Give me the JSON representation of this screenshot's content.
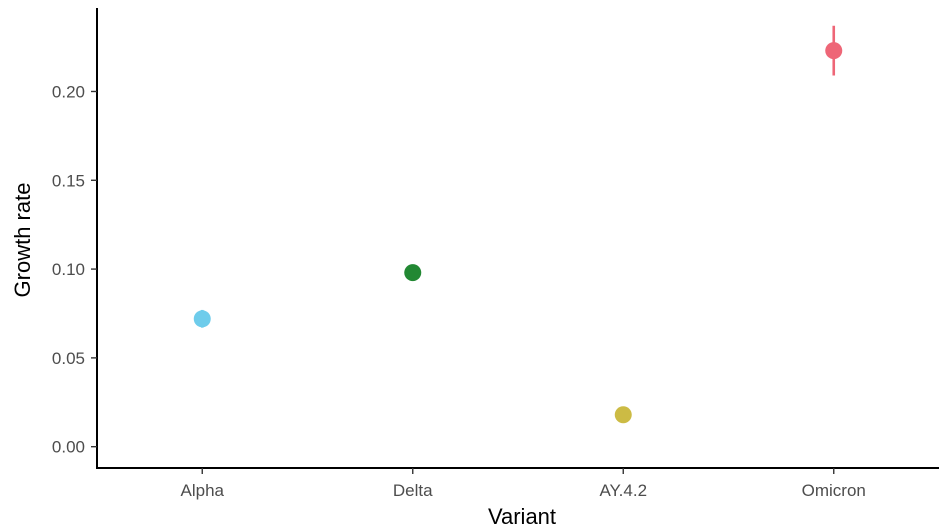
{
  "chart_data": {
    "type": "scatter",
    "xlabel": "Variant",
    "ylabel": "Growth rate",
    "categories": [
      "Alpha",
      "Delta",
      "AY.4.2",
      "Omicron"
    ],
    "points": [
      {
        "category": "Alpha",
        "value": 0.072,
        "lower": 0.067,
        "upper": 0.077,
        "color": "#6ECCEB"
      },
      {
        "category": "Delta",
        "value": 0.098,
        "lower": 0.096,
        "upper": 0.1,
        "color": "#228833"
      },
      {
        "category": "AY.4.2",
        "value": 0.018,
        "lower": 0.017,
        "upper": 0.019,
        "color": "#CCBB44"
      },
      {
        "category": "Omicron",
        "value": 0.223,
        "lower": 0.209,
        "upper": 0.237,
        "color": "#EE6677"
      }
    ],
    "yticks": [
      0.0,
      0.05,
      0.1,
      0.15,
      0.2
    ],
    "ytick_labels": [
      "0.00",
      "0.05",
      "0.10",
      "0.15",
      "0.20"
    ],
    "ylim": [
      -0.012,
      0.247
    ],
    "grid": false,
    "legend": "none"
  }
}
